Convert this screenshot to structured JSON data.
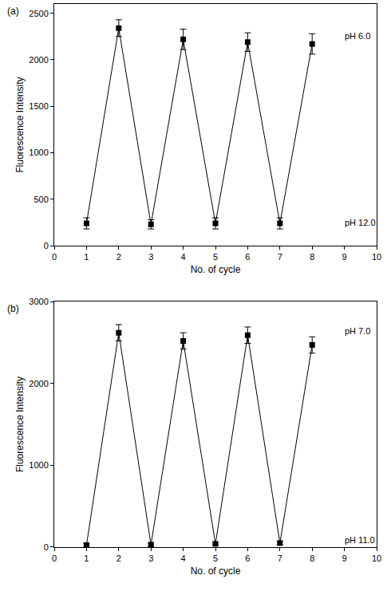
{
  "chart_data": [
    {
      "type": "line",
      "title": "(a)",
      "x_label": "No. of cycle",
      "y_label": "Fluorescence Intensity",
      "x": [
        1,
        2,
        3,
        4,
        5,
        6,
        7,
        8
      ],
      "values": [
        240,
        2340,
        230,
        2220,
        240,
        2190,
        240,
        2170
      ],
      "errors": [
        60,
        90,
        50,
        110,
        60,
        100,
        60,
        110
      ],
      "color": "#000000",
      "marker": "square",
      "xlim": [
        0,
        10
      ],
      "xticks": [
        0,
        1,
        2,
        3,
        4,
        5,
        6,
        7,
        8,
        9,
        10
      ],
      "ylim": [
        0,
        2600
      ],
      "yticks": [
        0,
        500,
        1000,
        1500,
        2000,
        2500
      ],
      "grid": false,
      "annotations": [
        {
          "text": "pH 6.0",
          "x": 8.95,
          "y": 2260
        },
        {
          "text": "pH 12.0",
          "x": 8.95,
          "y": 250
        }
      ]
    },
    {
      "type": "line",
      "title": "(b)",
      "x_label": "No. of cycle",
      "y_label": "Fluorescence Intensity",
      "x": [
        1,
        2,
        3,
        4,
        5,
        6,
        7,
        8
      ],
      "values": [
        25,
        2620,
        30,
        2520,
        40,
        2590,
        50,
        2470
      ],
      "errors": [
        20,
        100,
        20,
        100,
        20,
        100,
        20,
        100
      ],
      "color": "#000000",
      "marker": "square",
      "xlim": [
        0,
        10
      ],
      "xticks": [
        0,
        1,
        2,
        3,
        4,
        5,
        6,
        7,
        8,
        9,
        10
      ],
      "ylim": [
        0,
        3000
      ],
      "yticks": [
        0,
        1000,
        2000,
        3000
      ],
      "grid": false,
      "annotations": [
        {
          "text": "pH 7.0",
          "x": 8.95,
          "y": 2640
        },
        {
          "text": "pH 11.0",
          "x": 8.95,
          "y": 90
        }
      ]
    }
  ]
}
